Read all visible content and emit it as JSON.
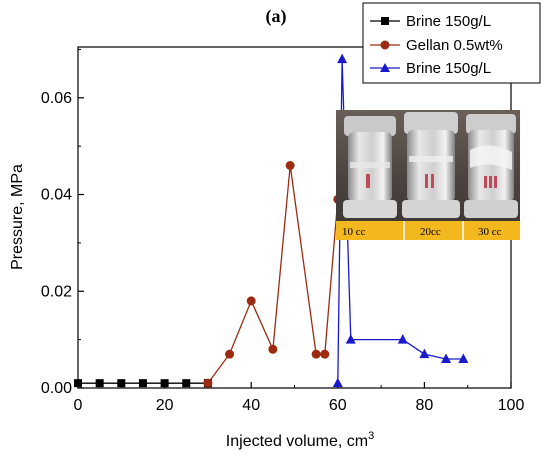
{
  "panel_label": "(a)",
  "colors": {
    "brine1": "#000000",
    "gellan": "#9b2c12",
    "brine2": "#1a1acc",
    "inset_strip": "#f2b81e"
  },
  "inset": {
    "labels": [
      "10 cc",
      "20cc",
      "30 cc"
    ]
  },
  "chart_data": {
    "type": "line",
    "xlabel": "Injected volume, cm",
    "xlabel_superscript": "3",
    "ylabel": "Pressure, MPa",
    "xlim": [
      0,
      100
    ],
    "ylim": [
      0,
      0.0705
    ],
    "xticks": [
      0,
      20,
      40,
      60,
      80,
      100
    ],
    "xtick_labels": [
      "0",
      "20",
      "40",
      "60",
      "80",
      "100"
    ],
    "yticks": [
      0.0,
      0.02,
      0.04,
      0.06
    ],
    "ytick_labels": [
      "0.00",
      "0.02",
      "0.04",
      "0.06"
    ],
    "grid": false,
    "legend_position": "top-right",
    "series": [
      {
        "name": "Brine 150g/L",
        "marker": "square",
        "x": [
          0,
          5,
          10,
          15,
          20,
          25,
          30
        ],
        "y": [
          0.001,
          0.001,
          0.001,
          0.001,
          0.001,
          0.001,
          0.001
        ]
      },
      {
        "name": "Gellan 0.5wt%",
        "marker": "circle",
        "x": [
          30,
          35,
          40,
          45,
          49,
          55,
          57,
          60
        ],
        "y": [
          0.001,
          0.007,
          0.018,
          0.008,
          0.046,
          0.007,
          0.007,
          0.039
        ]
      },
      {
        "name": "Brine 150g/L",
        "marker": "triangle",
        "x": [
          60,
          61,
          63,
          75,
          80,
          85,
          89
        ],
        "y": [
          0.001,
          0.068,
          0.01,
          0.01,
          0.007,
          0.006,
          0.006
        ]
      }
    ]
  }
}
